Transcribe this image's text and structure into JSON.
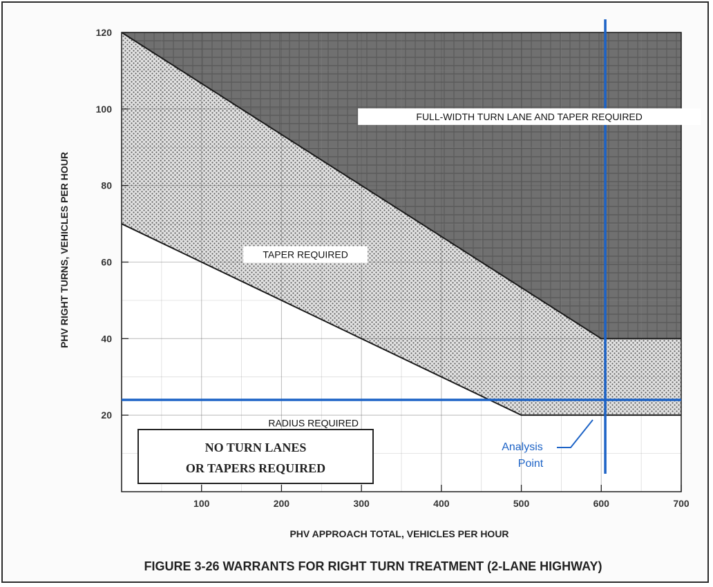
{
  "chart_data": {
    "type": "area",
    "title": "FIGURE 3-26 WARRANTS FOR RIGHT TURN TREATMENT (2-LANE HIGHWAY)",
    "xlabel": "PHV APPROACH TOTAL, VEHICLES PER HOUR",
    "ylabel": "PHV RIGHT TURNS, VEHICLES PER HOUR",
    "xlim": [
      0,
      700
    ],
    "ylim": [
      0,
      120
    ],
    "x_ticks": [
      "100",
      "200",
      "300",
      "400",
      "500",
      "600",
      "700"
    ],
    "y_ticks": [
      "20",
      "40",
      "60",
      "80",
      "100",
      "120"
    ],
    "grid": true,
    "boundaries": [
      {
        "id": "taper_boundary",
        "x": [
          0,
          500,
          700
        ],
        "y": [
          70,
          20,
          20
        ]
      },
      {
        "id": "full_width_boundary",
        "x": [
          0,
          600,
          700
        ],
        "y": [
          120,
          40,
          40
        ]
      }
    ],
    "regions": [
      {
        "label": "FULL-WIDTH TURN LANE AND TAPER REQUIRED",
        "label_at": [
          510,
          98
        ]
      },
      {
        "label": "TAPER REQUIRED",
        "label_at": [
          230,
          62
        ]
      },
      {
        "label": "RADIUS REQUIRED",
        "label_at": [
          240,
          18
        ]
      }
    ],
    "boxed_note": [
      "NO TURN LANES",
      "OR TAPERS REQUIRED"
    ],
    "analysis_point": {
      "x": 605,
      "y": 24,
      "label": [
        "Analysis",
        "Point"
      ]
    }
  },
  "colors": {
    "full_width": "#6e6e6e",
    "taper_fill": "#dcdcdc",
    "taper_dots": "#6a6a6a",
    "analysis_line": "#1d63c6",
    "outline": "#1a1a1a"
  }
}
